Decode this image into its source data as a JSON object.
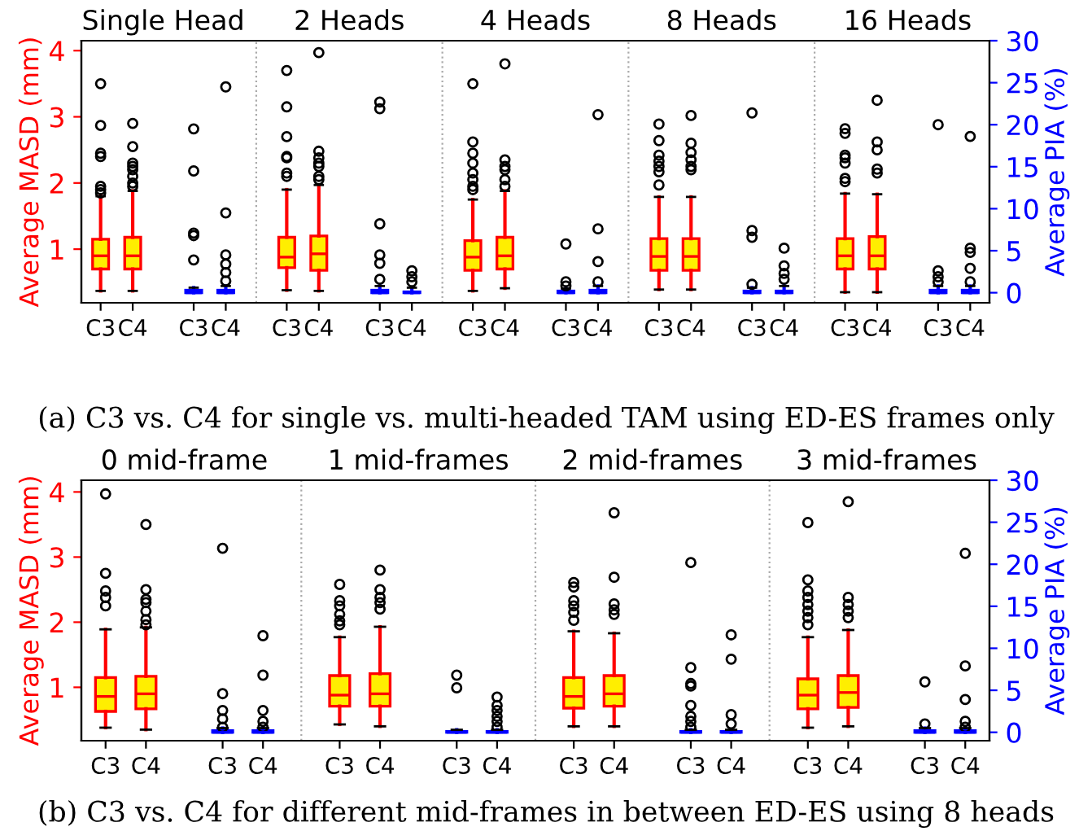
{
  "chart_data": [
    {
      "type": "box",
      "title": "(a) C3 vs. C4 for single vs. multi-headed TAM using ED-ES frames only",
      "ylabel": "Average MASD (mm)",
      "y2label": "Average PIA (%)",
      "annotations": [
        "Single Head",
        "2 Heads",
        "4 Heads",
        "8 Heads",
        "16 Heads"
      ],
      "categories": [
        "C3",
        "C4",
        "C3",
        "C4",
        "C3",
        "C4",
        "C3",
        "C4",
        "C3",
        "C4",
        "C3",
        "C4",
        "C3",
        "C4",
        "C3",
        "C4",
        "C3",
        "C4",
        "C3",
        "C4"
      ],
      "ylim": [
        0.19,
        4.15
      ],
      "yticks": [
        1,
        2,
        3,
        4
      ],
      "y2lim": [
        -1.2,
        30
      ],
      "y2ticks": [
        0,
        5,
        10,
        15,
        20,
        25,
        30
      ],
      "series": [
        {
          "color": "#ff0000",
          "boxes": [
            {
              "low": 0.37,
              "q1": 0.7,
              "median": 0.9,
              "q3": 1.15,
              "high": 1.8,
              "outliers": [
                1.85,
                1.9,
                1.95,
                2.4,
                2.45,
                2.87,
                3.5
              ]
            },
            {
              "low": 0.37,
              "q1": 0.7,
              "median": 0.9,
              "q3": 1.18,
              "high": 1.88,
              "outliers": [
                1.95,
                2.0,
                2.1,
                2.2,
                2.25,
                2.3,
                2.55,
                2.9
              ]
            },
            null,
            null,
            {
              "low": 0.38,
              "q1": 0.72,
              "median": 0.88,
              "q3": 1.18,
              "high": 1.9,
              "outliers": [
                2.1,
                2.15,
                2.38,
                2.4,
                2.7,
                3.15,
                3.7
              ]
            },
            {
              "low": 0.37,
              "q1": 0.68,
              "median": 0.93,
              "q3": 1.2,
              "high": 1.97,
              "outliers": [
                2.05,
                2.1,
                2.25,
                2.3,
                2.38,
                2.48,
                3.97
              ]
            },
            null,
            null,
            {
              "low": 0.37,
              "q1": 0.68,
              "median": 0.88,
              "q3": 1.13,
              "high": 1.75,
              "outliers": [
                1.9,
                1.95,
                2.05,
                2.15,
                2.3,
                2.45,
                2.62,
                3.5
              ]
            },
            {
              "low": 0.41,
              "q1": 0.7,
              "median": 0.9,
              "q3": 1.18,
              "high": 1.88,
              "outliers": [
                1.95,
                2.05,
                2.2,
                2.25,
                2.35,
                3.8
              ]
            },
            null,
            null,
            {
              "low": 0.39,
              "q1": 0.68,
              "median": 0.89,
              "q3": 1.16,
              "high": 1.79,
              "outliers": [
                1.97,
                2.17,
                2.25,
                2.33,
                2.42,
                2.64,
                2.89
              ]
            },
            {
              "low": 0.39,
              "q1": 0.68,
              "median": 0.89,
              "q3": 1.16,
              "high": 1.79,
              "outliers": [
                2.2,
                2.25,
                2.35,
                2.46,
                2.6,
                3.02
              ]
            },
            null,
            null,
            {
              "low": 0.35,
              "q1": 0.7,
              "median": 0.9,
              "q3": 1.16,
              "high": 1.84,
              "outliers": [
                2.02,
                2.07,
                2.3,
                2.38,
                2.42,
                2.75,
                2.82
              ]
            },
            {
              "low": 0.35,
              "q1": 0.7,
              "median": 0.9,
              "q3": 1.19,
              "high": 1.83,
              "outliers": [
                2.15,
                2.21,
                2.5,
                2.62,
                3.25
              ]
            },
            null,
            null
          ]
        },
        {
          "axis": "y2",
          "color": "#0000ff",
          "boxes": [
            null,
            null,
            {
              "low": 0,
              "q1": 0,
              "median": 0,
              "q3": 0.3,
              "high": 0.6,
              "outliers": [
                3.9,
                6.8,
                7.1,
                14.5,
                19.5
              ]
            },
            {
              "low": 0,
              "q1": 0,
              "median": 0,
              "q3": 0.3,
              "high": 0.8,
              "outliers": [
                1.4,
                2.4,
                3.4,
                4.5,
                9.5,
                24.5
              ]
            },
            null,
            null,
            {
              "low": 0,
              "q1": 0,
              "median": 0,
              "q3": 0.3,
              "high": 0.8,
              "outliers": [
                1.6,
                3.5,
                4.5,
                8.2,
                21.9,
                22.7
              ]
            },
            {
              "low": 0,
              "q1": 0,
              "median": 0,
              "q3": 0.1,
              "high": 0.6,
              "outliers": [
                1.3,
                1.9,
                2.6
              ]
            },
            null,
            null,
            {
              "low": 0,
              "q1": 0,
              "median": 0,
              "q3": 0.2,
              "high": 0.5,
              "outliers": [
                0.8,
                1.3,
                5.8
              ]
            },
            {
              "low": 0,
              "q1": 0,
              "median": 0,
              "q3": 0.3,
              "high": 0.8,
              "outliers": [
                1.3,
                3.7,
                7.6,
                21.2
              ]
            },
            null,
            null,
            {
              "low": 0,
              "q1": 0,
              "median": 0,
              "q3": 0.2,
              "high": 0.6,
              "outliers": [
                1.0,
                6.6,
                7.4,
                21.4
              ]
            },
            {
              "low": 0,
              "q1": 0,
              "median": 0,
              "q3": 0.2,
              "high": 0.8,
              "outliers": [
                1.6,
                2.3,
                3.2,
                5.3
              ]
            },
            null,
            null,
            {
              "low": 0,
              "q1": 0,
              "median": 0,
              "q3": 0.3,
              "high": 0.8,
              "outliers": [
                1.3,
                1.9,
                2.6,
                20.0
              ]
            },
            {
              "low": 0,
              "q1": 0,
              "median": 0,
              "q3": 0.3,
              "high": 0.8,
              "outliers": [
                1.3,
                2.9,
                4.8,
                5.3,
                18.6
              ]
            }
          ]
        }
      ]
    },
    {
      "type": "box",
      "title": "(b) C3 vs. C4 for different mid-frames in between ED-ES using 8 heads",
      "ylabel": "Average MASD (mm)",
      "y2label": "Average PIA (%)",
      "annotations": [
        "0 mid-frame",
        "1 mid-frames",
        "2 mid-frames",
        "3 mid-frames"
      ],
      "categories": [
        "C3",
        "C4",
        "C3",
        "C4",
        "C3",
        "C4",
        "C3",
        "C4",
        "C3",
        "C4",
        "C3",
        "C4",
        "C3",
        "C4",
        "C3",
        "C4"
      ],
      "ylim": [
        0.18,
        4.18
      ],
      "yticks": [
        1,
        2,
        3,
        4
      ],
      "y2lim": [
        -1.0,
        30
      ],
      "y2ticks": [
        0,
        5,
        10,
        15,
        20,
        25,
        30
      ],
      "series": [
        {
          "color": "#ff0000",
          "boxes": [
            {
              "low": 0.38,
              "q1": 0.63,
              "median": 0.86,
              "q3": 1.15,
              "high": 1.89,
              "outliers": [
                2.25,
                2.38,
                2.48,
                2.75,
                3.97
              ]
            },
            {
              "low": 0.35,
              "q1": 0.67,
              "median": 0.9,
              "q3": 1.17,
              "high": 1.92,
              "outliers": [
                1.96,
                2.04,
                2.17,
                2.3,
                2.35,
                2.5,
                3.5
              ]
            },
            null,
            null,
            {
              "low": 0.43,
              "q1": 0.71,
              "median": 0.88,
              "q3": 1.18,
              "high": 1.77,
              "outliers": [
                1.96,
                2.02,
                2.12,
                2.25,
                2.33,
                2.58
              ]
            },
            {
              "low": 0.4,
              "q1": 0.71,
              "median": 0.9,
              "q3": 1.21,
              "high": 1.93,
              "outliers": [
                2.2,
                2.3,
                2.38,
                2.5,
                2.8
              ]
            },
            null,
            null,
            {
              "low": 0.4,
              "q1": 0.68,
              "median": 0.86,
              "q3": 1.15,
              "high": 1.86,
              "outliers": [
                2.03,
                2.15,
                2.25,
                2.33,
                2.54,
                2.61
              ]
            },
            {
              "low": 0.4,
              "q1": 0.71,
              "median": 0.9,
              "q3": 1.18,
              "high": 1.83,
              "outliers": [
                2.12,
                2.19,
                2.28,
                2.69,
                3.68
              ]
            },
            null,
            null,
            {
              "low": 0.38,
              "q1": 0.67,
              "median": 0.88,
              "q3": 1.13,
              "high": 1.77,
              "outliers": [
                1.96,
                2.07,
                2.17,
                2.27,
                2.38,
                2.48,
                2.65,
                3.53
              ]
            },
            {
              "low": 0.4,
              "q1": 0.69,
              "median": 0.92,
              "q3": 1.18,
              "high": 1.88,
              "outliers": [
                2.07,
                2.17,
                2.27,
                2.38,
                3.85
              ]
            },
            null,
            null
          ]
        },
        {
          "axis": "y2",
          "color": "#0000ff",
          "boxes": [
            null,
            null,
            {
              "low": 0,
              "q1": 0,
              "median": 0,
              "q3": 0.2,
              "high": 0.5,
              "outliers": [
                0.6,
                1.6,
                2.6,
                4.6,
                21.9
              ]
            },
            {
              "low": 0,
              "q1": 0,
              "median": 0,
              "q3": 0.2,
              "high": 0.5,
              "outliers": [
                0.6,
                1.3,
                2.6,
                6.8,
                11.5
              ]
            },
            null,
            null,
            {
              "low": 0,
              "q1": 0,
              "median": 0,
              "q3": 0.1,
              "high": 0.3,
              "outliers": [
                5.3,
                6.8
              ]
            },
            {
              "low": 0,
              "q1": 0,
              "median": 0,
              "q3": 0.1,
              "high": 0.3,
              "outliers": [
                0.6,
                1.3,
                1.9,
                2.6,
                3.2,
                4.2
              ]
            },
            null,
            null,
            {
              "low": 0,
              "q1": 0,
              "median": 0,
              "q3": 0.1,
              "high": 0.3,
              "outliers": [
                0.6,
                1.3,
                1.9,
                3.2,
                5.5,
                5.8,
                7.7,
                20.2
              ]
            },
            {
              "low": 0,
              "q1": 0,
              "median": 0,
              "q3": 0.1,
              "high": 0.3,
              "outliers": [
                1.0,
                2.1,
                8.7,
                11.6
              ]
            },
            null,
            null,
            {
              "low": 0,
              "q1": 0,
              "median": 0,
              "q3": 0.2,
              "high": 0.5,
              "outliers": [
                1.0,
                6.0
              ]
            },
            {
              "low": 0,
              "q1": 0,
              "median": 0,
              "q3": 0.2,
              "high": 0.5,
              "outliers": [
                0.6,
                1.3,
                3.9,
                7.9,
                21.3
              ]
            }
          ]
        }
      ]
    }
  ]
}
